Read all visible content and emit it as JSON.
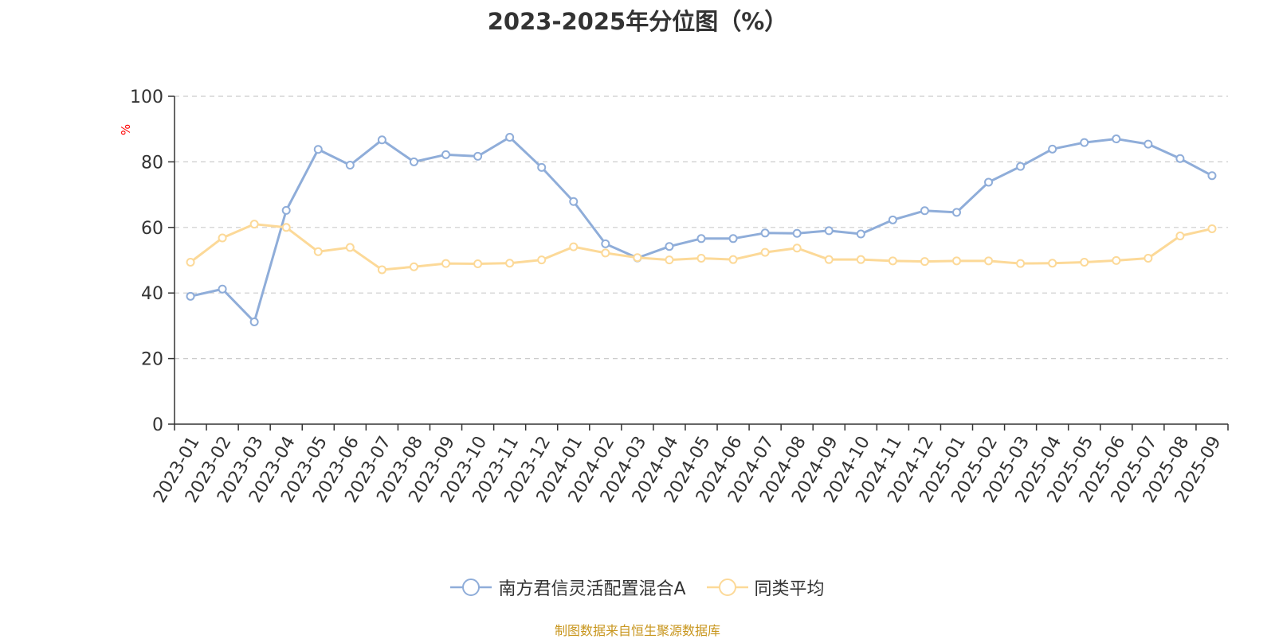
{
  "chart_data": {
    "type": "line",
    "title": "2023-2025年分位图（%）",
    "ylabel": "%",
    "ylim": [
      0,
      100
    ],
    "yticks": [
      "0",
      "20",
      "40",
      "60",
      "80",
      "100"
    ],
    "grid": true,
    "legend_position": "bottom",
    "categories": [
      "2023-01",
      "2023-02",
      "2023-03",
      "2023-04",
      "2023-05",
      "2023-06",
      "2023-07",
      "2023-08",
      "2023-09",
      "2023-10",
      "2023-11",
      "2023-12",
      "2024-01",
      "2024-02",
      "2024-03",
      "2024-04",
      "2024-05",
      "2024-06",
      "2024-07",
      "2024-08",
      "2024-09",
      "2024-10",
      "2024-11",
      "2024-12",
      "2025-01",
      "2025-02",
      "2025-03",
      "2025-04",
      "2025-05",
      "2025-06",
      "2025-07",
      "2025-08",
      "2025-09"
    ],
    "series": [
      {
        "name": "南方君信灵活配置混合A",
        "color": "#8fadd9",
        "values": [
          39.0,
          41.2,
          31.2,
          65.2,
          83.8,
          79.0,
          86.7,
          80.0,
          82.2,
          81.7,
          87.5,
          78.3,
          67.9,
          55.0,
          50.7,
          54.2,
          56.6,
          56.6,
          58.3,
          58.2,
          59.0,
          58.0,
          62.3,
          65.1,
          64.6,
          73.8,
          78.6,
          83.9,
          85.9,
          87.0,
          85.4,
          81.0,
          75.8
        ]
      },
      {
        "name": "同类平均",
        "color": "#fcd998",
        "values": [
          49.4,
          56.8,
          61.0,
          60.0,
          52.6,
          53.9,
          47.1,
          48.0,
          49.0,
          48.9,
          49.1,
          50.1,
          54.1,
          52.2,
          50.8,
          50.1,
          50.6,
          50.2,
          52.4,
          53.7,
          50.2,
          50.2,
          49.8,
          49.6,
          49.8,
          49.8,
          49.0,
          49.1,
          49.4,
          49.9,
          50.6,
          57.4,
          59.6
        ]
      }
    ]
  },
  "legend": {
    "item0": "南方君信灵活配置混合A",
    "item1": "同类平均"
  },
  "source_note": "制图数据来自恒生聚源数据库",
  "colors": {
    "axis": "#333333",
    "grid": "#cccccc",
    "ylabel": "#ff0000",
    "source": "#c8961e"
  }
}
